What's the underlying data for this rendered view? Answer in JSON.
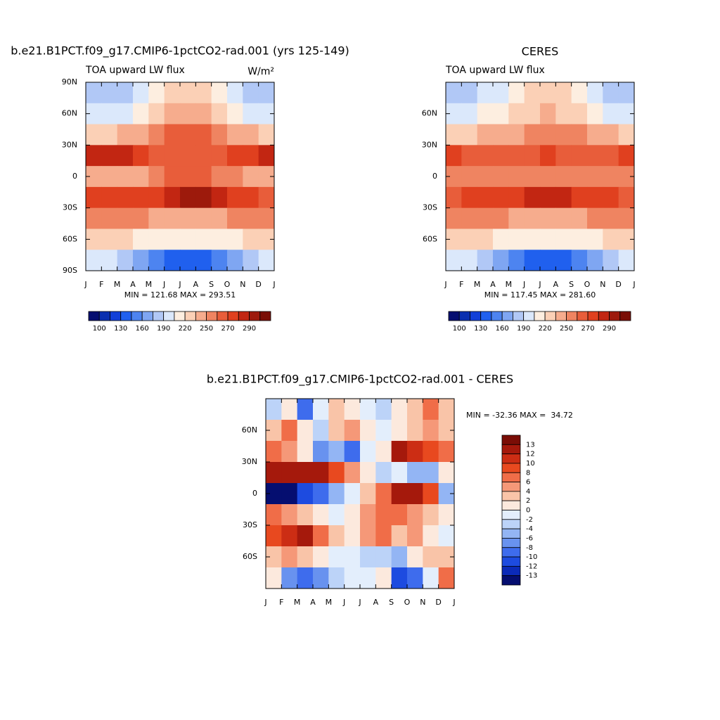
{
  "chart_data": [
    {
      "type": "contour",
      "title": "b.e21.B1PCT.f09_g17.CMIP6-1pctCO2-rad.001 (yrs 125-149)",
      "subtitle": "TOA upward LW flux",
      "units": "W/m²",
      "stats": "MIN = 121.68 MAX = 293.51",
      "xlim": [
        0,
        12
      ],
      "xticks": [
        {
          "value": 0,
          "label": "J"
        },
        {
          "value": 1,
          "label": "F"
        },
        {
          "value": 2,
          "label": "M"
        },
        {
          "value": 3,
          "label": "A"
        },
        {
          "value": 4,
          "label": "M"
        },
        {
          "value": 5,
          "label": "J"
        },
        {
          "value": 6,
          "label": "J"
        },
        {
          "value": 7,
          "label": "A"
        },
        {
          "value": 8,
          "label": "S"
        },
        {
          "value": 9,
          "label": "O"
        },
        {
          "value": 10,
          "label": "N"
        },
        {
          "value": 11,
          "label": "D"
        },
        {
          "value": 12,
          "label": "J"
        }
      ],
      "ylim": [
        -90,
        90
      ],
      "yticks": [
        {
          "value": 90,
          "label": "90N"
        },
        {
          "value": 60,
          "label": "60N"
        },
        {
          "value": 30,
          "label": "30N"
        },
        0,
        {
          "value": -30,
          "label": "30S"
        },
        {
          "value": -60,
          "label": "60S"
        },
        {
          "value": -90,
          "label": "90S"
        }
      ],
      "y": [
        80,
        60,
        40,
        20,
        0,
        -20,
        -40,
        -60,
        -80
      ],
      "values": [
        [
          175,
          175,
          180,
          195,
          210,
          225,
          228,
          220,
          205,
          190,
          180,
          175
        ],
        [
          195,
          195,
          200,
          210,
          220,
          235,
          240,
          235,
          225,
          210,
          200,
          195
        ],
        [
          230,
          230,
          235,
          240,
          250,
          260,
          265,
          262,
          255,
          245,
          235,
          230
        ],
        [
          280,
          288,
          282,
          275,
          265,
          262,
          262,
          262,
          265,
          270,
          275,
          282
        ],
        [
          245,
          240,
          238,
          240,
          250,
          260,
          265,
          262,
          255,
          250,
          248,
          245
        ],
        [
          270,
          272,
          275,
          275,
          278,
          283,
          292,
          290,
          283,
          275,
          270,
          268
        ],
        [
          255,
          255,
          255,
          252,
          248,
          245,
          245,
          245,
          248,
          250,
          255,
          255
        ],
        [
          225,
          225,
          222,
          215,
          208,
          205,
          205,
          205,
          208,
          212,
          220,
          225
        ],
        [
          200,
          195,
          180,
          165,
          150,
          140,
          138,
          140,
          148,
          165,
          185,
          200
        ]
      ],
      "colorbar": {
        "orientation": "horizontal",
        "colors": [
          "#050e70",
          "#0a2fb0",
          "#1240d8",
          "#2060ee",
          "#4d84f0",
          "#7fa6f2",
          "#b1c8f6",
          "#dbe8fb",
          "#fdeee0",
          "#fbd0b6",
          "#f6ac8d",
          "#ef8461",
          "#e85d3a",
          "#e0401f",
          "#c22612",
          "#9d1a0c",
          "#7a0d06"
        ],
        "labels": [
          100,
          130,
          160,
          190,
          220,
          250,
          270,
          290
        ]
      }
    },
    {
      "type": "contour",
      "title": "CERES",
      "subtitle": "TOA upward LW flux",
      "stats": "MIN = 117.45 MAX = 281.60",
      "xlim": [
        0,
        12
      ],
      "xticks": [
        {
          "value": 0,
          "label": "J"
        },
        {
          "value": 1,
          "label": "F"
        },
        {
          "value": 2,
          "label": "M"
        },
        {
          "value": 3,
          "label": "A"
        },
        {
          "value": 4,
          "label": "M"
        },
        {
          "value": 5,
          "label": "J"
        },
        {
          "value": 6,
          "label": "J"
        },
        {
          "value": 7,
          "label": "A"
        },
        {
          "value": 8,
          "label": "S"
        },
        {
          "value": 9,
          "label": "O"
        },
        {
          "value": 10,
          "label": "N"
        },
        {
          "value": 11,
          "label": "D"
        },
        {
          "value": 12,
          "label": "J"
        }
      ],
      "ylim": [
        -90,
        90
      ],
      "yticks": [
        {
          "value": 60,
          "label": "60N"
        },
        {
          "value": 30,
          "label": "30N"
        },
        0,
        {
          "value": -30,
          "label": "30S"
        },
        {
          "value": -60,
          "label": "60S"
        }
      ],
      "y": [
        80,
        60,
        40,
        20,
        0,
        -20,
        -40,
        -60,
        -80
      ],
      "values": [
        [
          180,
          182,
          190,
          200,
          212,
          225,
          228,
          222,
          208,
          195,
          185,
          180
        ],
        [
          198,
          200,
          205,
          212,
          222,
          232,
          236,
          232,
          222,
          212,
          202,
          198
        ],
        [
          232,
          232,
          236,
          240,
          248,
          255,
          258,
          256,
          250,
          242,
          236,
          232
        ],
        [
          270,
          268,
          266,
          264,
          262,
          265,
          270,
          268,
          264,
          265,
          268,
          270
        ],
        [
          250,
          250,
          252,
          254,
          255,
          252,
          250,
          252,
          254,
          255,
          252,
          250
        ],
        [
          268,
          270,
          272,
          275,
          278,
          280,
          282,
          280,
          276,
          272,
          270,
          268
        ],
        [
          255,
          255,
          255,
          252,
          248,
          245,
          245,
          245,
          248,
          250,
          255,
          255
        ],
        [
          225,
          225,
          222,
          215,
          210,
          205,
          205,
          205,
          208,
          212,
          220,
          225
        ],
        [
          195,
          190,
          175,
          160,
          148,
          140,
          138,
          140,
          148,
          162,
          180,
          195
        ]
      ],
      "colorbar": {
        "orientation": "horizontal",
        "colors": [
          "#050e70",
          "#0a2fb0",
          "#1240d8",
          "#2060ee",
          "#4d84f0",
          "#7fa6f2",
          "#b1c8f6",
          "#dbe8fb",
          "#fdeee0",
          "#fbd0b6",
          "#f6ac8d",
          "#ef8461",
          "#e85d3a",
          "#e0401f",
          "#c22612",
          "#9d1a0c",
          "#7a0d06"
        ],
        "labels": [
          100,
          130,
          160,
          190,
          220,
          250,
          270,
          290
        ]
      }
    },
    {
      "type": "contour",
      "title": "b.e21.B1PCT.f09_g17.CMIP6-1pctCO2-rad.001 - CERES",
      "stats": "MIN = -32.36 MAX =  34.72",
      "xlim": [
        0,
        12
      ],
      "xticks": [
        {
          "value": 0,
          "label": "J"
        },
        {
          "value": 1,
          "label": "F"
        },
        {
          "value": 2,
          "label": "M"
        },
        {
          "value": 3,
          "label": "A"
        },
        {
          "value": 4,
          "label": "M"
        },
        {
          "value": 5,
          "label": "J"
        },
        {
          "value": 6,
          "label": "J"
        },
        {
          "value": 7,
          "label": "A"
        },
        {
          "value": 8,
          "label": "S"
        },
        {
          "value": 9,
          "label": "O"
        },
        {
          "value": 10,
          "label": "N"
        },
        {
          "value": 11,
          "label": "D"
        },
        {
          "value": 12,
          "label": "J"
        }
      ],
      "ylim": [
        -90,
        90
      ],
      "yticks": [
        {
          "value": 60,
          "label": "60N"
        },
        {
          "value": 30,
          "label": "30N"
        },
        0,
        {
          "value": -30,
          "label": "30S"
        },
        {
          "value": -60,
          "label": "60S"
        }
      ],
      "y": [
        80,
        60,
        40,
        20,
        0,
        -20,
        -40,
        -60,
        -80
      ],
      "values": [
        [
          -2,
          2,
          -8,
          0,
          4,
          2,
          0,
          -2,
          2,
          4,
          8,
          4
        ],
        [
          4,
          8,
          2,
          -2,
          4,
          6,
          2,
          0,
          2,
          4,
          6,
          4
        ],
        [
          8,
          6,
          2,
          -6,
          -4,
          -8,
          0,
          2,
          13,
          12,
          10,
          8
        ],
        [
          13,
          13,
          13,
          13,
          10,
          6,
          2,
          -2,
          0,
          -4,
          -4,
          2
        ],
        [
          -13,
          -13,
          -10,
          -8,
          -4,
          0,
          4,
          8,
          13,
          13,
          10,
          -4
        ],
        [
          8,
          6,
          4,
          2,
          0,
          2,
          6,
          8,
          8,
          6,
          4,
          2
        ],
        [
          10,
          12,
          13,
          8,
          4,
          2,
          6,
          8,
          4,
          6,
          2,
          0
        ],
        [
          4,
          6,
          4,
          2,
          0,
          0,
          -2,
          -2,
          -4,
          2,
          4,
          4
        ],
        [
          2,
          -6,
          -8,
          -6,
          -2,
          0,
          0,
          2,
          -10,
          -8,
          0,
          8
        ]
      ],
      "colorbar": {
        "orientation": "vertical",
        "colors": [
          "#7a0d06",
          "#a5190c",
          "#cc2d14",
          "#e8491f",
          "#f06d48",
          "#f59878",
          "#f9c4a8",
          "#fce9dd",
          "#e3eefc",
          "#bcd3f8",
          "#93b5f4",
          "#6892ef",
          "#3e6ced",
          "#1d4be0",
          "#0b2ab8",
          "#050e70"
        ],
        "labels": [
          13,
          12,
          10,
          8,
          6,
          4,
          2,
          0,
          -2,
          -4,
          -6,
          -8,
          -10,
          -12,
          -13
        ]
      }
    }
  ]
}
